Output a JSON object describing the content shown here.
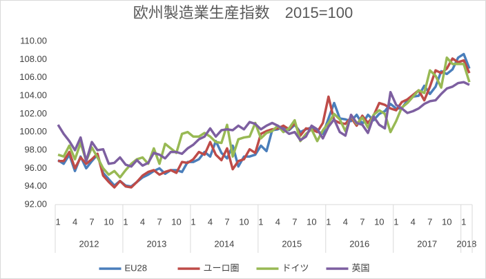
{
  "chart_data": {
    "type": "line",
    "title": "欧州製造業生産指数　2015=100",
    "categories": [
      "1",
      null,
      null,
      "4",
      null,
      null,
      "7",
      null,
      null,
      "10",
      null,
      null,
      "1",
      null,
      null,
      "4",
      null,
      null,
      "7",
      null,
      null,
      "10",
      null,
      null,
      "1",
      null,
      null,
      "4",
      null,
      null,
      "7",
      null,
      null,
      "10",
      null,
      null,
      "1",
      null,
      null,
      "4",
      null,
      null,
      "7",
      null,
      null,
      "10",
      null,
      null,
      "1",
      null,
      null,
      "4",
      null,
      null,
      "7",
      null,
      null,
      "10",
      null,
      null,
      "1",
      null,
      null,
      "4",
      null,
      null,
      "7",
      null,
      null,
      "10",
      null,
      null,
      "1",
      null
    ],
    "category_groups": [
      "2012",
      "2013",
      "2014",
      "2015",
      "2016",
      "2017",
      "2018"
    ],
    "ylim": [
      92,
      110
    ],
    "yticks": [
      {
        "value": 92,
        "label": "92.00"
      },
      {
        "value": 94,
        "label": "94.00"
      },
      {
        "value": 96,
        "label": "96.00"
      },
      {
        "value": 98,
        "label": "98.00"
      },
      {
        "value": 100,
        "label": "100.00"
      },
      {
        "value": 102,
        "label": "102.00"
      },
      {
        "value": 104,
        "label": "104.00"
      },
      {
        "value": 106,
        "label": "106.00"
      },
      {
        "value": 108,
        "label": "108.00"
      },
      {
        "value": 110,
        "label": "110.00"
      }
    ],
    "grid": false,
    "legend": "bottom",
    "series": [
      {
        "name": "EU28",
        "color": "#4a7ebb",
        "values": [
          96.9,
          96.5,
          97.5,
          95.7,
          97.3,
          96.0,
          96.8,
          97.5,
          95.5,
          94.8,
          94.1,
          94.6,
          94.1,
          94.0,
          94.5,
          95.0,
          95.3,
          95.7,
          96.0,
          95.4,
          95.8,
          95.8,
          95.6,
          96.7,
          96.7,
          97.0,
          97.8,
          97.3,
          99.0,
          97.7,
          97.1,
          98.5,
          96.2,
          97.3,
          97.3,
          97.5,
          98.5,
          97.9,
          100.2,
          100.3,
          100.6,
          100.2,
          100.8,
          100.0,
          100.3,
          100.5,
          100.1,
          99.8,
          101.5,
          103.2,
          101.5,
          101.4,
          101.2,
          101.9,
          100.9,
          101.9,
          101.3,
          102.0,
          102.3,
          103.1,
          102.6,
          102.6,
          103.5,
          103.9,
          104.0,
          105.1,
          104.2,
          105.0,
          106.7,
          106.4,
          106.9,
          108.2,
          108.6,
          107.0
        ]
      },
      {
        "name": "ユーロ圏",
        "color": "#be4b48",
        "values": [
          96.8,
          96.8,
          97.8,
          96.0,
          97.2,
          96.5,
          97.0,
          97.6,
          95.2,
          94.5,
          93.9,
          94.6,
          94.0,
          93.9,
          94.5,
          95.2,
          95.6,
          95.8,
          95.3,
          95.6,
          95.8,
          95.5,
          96.7,
          96.6,
          97.0,
          97.8,
          97.5,
          98.9,
          97.5,
          96.9,
          98.2,
          95.9,
          96.8,
          97.0,
          98.1,
          97.7,
          99.8,
          100.1,
          100.3,
          100.4,
          100.7,
          100.3,
          101.0,
          99.6,
          100.4,
          100.3,
          100.0,
          101.0,
          103.9,
          101.3,
          101.0,
          100.9,
          101.6,
          100.7,
          101.8,
          101.0,
          101.8,
          103.2,
          103.0,
          102.6,
          102.4,
          103.3,
          103.6,
          104.1,
          104.6,
          103.5,
          105.0,
          106.8,
          106.5,
          107.0,
          108.1,
          107.7,
          107.9,
          106.5
        ]
      },
      {
        "name": "ドイツ",
        "color": "#98b954",
        "values": [
          97.5,
          97.3,
          98.5,
          97.0,
          98.8,
          96.8,
          98.3,
          97.2,
          96.0,
          95.3,
          95.7,
          95.0,
          95.8,
          96.5,
          97.0,
          97.2,
          96.5,
          98.2,
          96.5,
          98.7,
          98.2,
          97.7,
          99.8,
          100.0,
          99.5,
          99.5,
          99.9,
          99.5,
          98.9,
          98.8,
          100.8,
          97.3,
          99.2,
          99.4,
          99.5,
          101.0,
          99.3,
          99.9,
          100.1,
          100.7,
          100.0,
          100.4,
          101.3,
          99.0,
          99.8,
          100.3,
          99.0,
          100.2,
          101.0,
          102.0,
          101.4,
          100.1,
          101.8,
          100.9,
          101.6,
          100.5,
          101.9,
          102.4,
          102.0,
          100.0,
          101.2,
          102.7,
          103.2,
          103.9,
          104.6,
          104.3,
          106.8,
          106.2,
          104.9,
          108.2,
          107.5,
          107.5,
          107.5,
          105.5
        ]
      },
      {
        "name": "英国",
        "color": "#7d5fa0",
        "values": [
          100.8,
          99.8,
          99.0,
          98.0,
          99.4,
          96.8,
          98.9,
          98.0,
          98.1,
          96.5,
          96.6,
          97.2,
          96.4,
          96.2,
          96.9,
          96.3,
          96.6,
          97.7,
          97.5,
          97.1,
          97.8,
          97.8,
          97.6,
          98.2,
          98.6,
          99.2,
          99.5,
          100.4,
          99.5,
          100.2,
          100.3,
          100.2,
          100.7,
          100.3,
          101.1,
          100.9,
          100.3,
          100.7,
          101.0,
          100.7,
          100.3,
          99.8,
          100.0,
          99.1,
          99.5,
          100.7,
          100.3,
          99.3,
          100.6,
          101.4,
          100.0,
          99.6,
          101.9,
          101.0,
          100.8,
          99.9,
          101.7,
          100.8,
          100.4,
          104.4,
          103.0,
          102.6,
          102.1,
          102.3,
          102.6,
          103.1,
          103.4,
          103.5,
          104.2,
          104.8,
          105.0,
          105.4,
          105.5,
          105.2
        ]
      }
    ]
  }
}
